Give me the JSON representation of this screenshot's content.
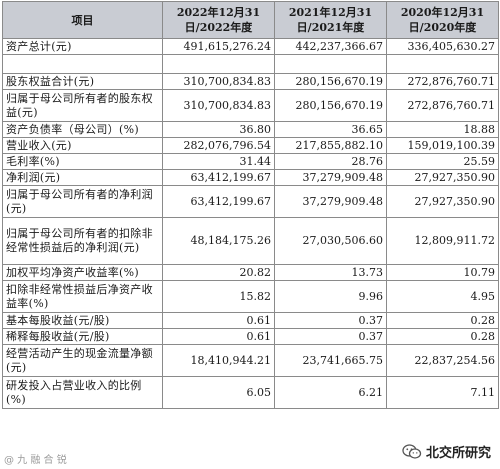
{
  "table": {
    "header": {
      "item": "项目",
      "col1": "2022年12月31日/2022年度",
      "col2": "2021年12月31日/2021年度",
      "col3": "2020年12月31日/2020年度"
    },
    "total_assets": {
      "label": "资产总计(元)",
      "values": [
        "491,615,276.24",
        "442,237,366.67",
        "336,405,630.27"
      ]
    },
    "rows": [
      {
        "label": "股东权益合计(元)",
        "values": [
          "310,700,834.83",
          "280,156,670.19",
          "272,876,760.71"
        ]
      },
      {
        "label": "归属于母公司所有者的股东权益(元)",
        "values": [
          "310,700,834.83",
          "280,156,670.19",
          "272,876,760.71"
        ]
      },
      {
        "label": "资产负债率（母公司）(%)",
        "values": [
          "36.80",
          "36.65",
          "18.88"
        ]
      },
      {
        "label": "营业收入(元)",
        "values": [
          "282,076,796.54",
          "217,855,882.10",
          "159,019,100.39"
        ]
      },
      {
        "label": "毛利率(%)",
        "values": [
          "31.44",
          "28.76",
          "25.59"
        ]
      },
      {
        "label": "净利润(元)",
        "values": [
          "63,412,199.67",
          "37,279,909.48",
          "27,927,350.90"
        ]
      },
      {
        "label": "归属于母公司所有者的净利润(元)",
        "values": [
          "63,412,199.67",
          "37,279,909.48",
          "27,927,350.90"
        ]
      },
      {
        "label": "归属于母公司所有者的扣除非经常性损益后的净利润(元)",
        "values": [
          "48,184,175.26",
          "27,030,506.60",
          "12,809,911.72"
        ]
      },
      {
        "label": "加权平均净资产收益率(%)",
        "values": [
          "20.82",
          "13.73",
          "10.79"
        ]
      },
      {
        "label": "扣除非经常性损益后净资产收益率(%)",
        "values": [
          "15.82",
          "9.96",
          "4.95"
        ]
      },
      {
        "label": "基本每股收益(元/股)",
        "values": [
          "0.61",
          "0.37",
          "0.28"
        ]
      },
      {
        "label": "稀释每股收益(元/股)",
        "values": [
          "0.61",
          "0.37",
          "0.28"
        ]
      },
      {
        "label": "经营活动产生的现金流量净额(元)",
        "values": [
          "18,410,944.21",
          "23,741,665.75",
          "22,837,254.56"
        ]
      },
      {
        "label": "研发投入占营业收入的比例(%)",
        "values": [
          "6.05",
          "6.21",
          "7.11"
        ]
      }
    ]
  },
  "watermarks": {
    "left": "@ 九 融 合 锐",
    "right": "北交所研究"
  },
  "colors": {
    "header_bg": "#c9ccd3",
    "border": "#8a8a8a"
  }
}
